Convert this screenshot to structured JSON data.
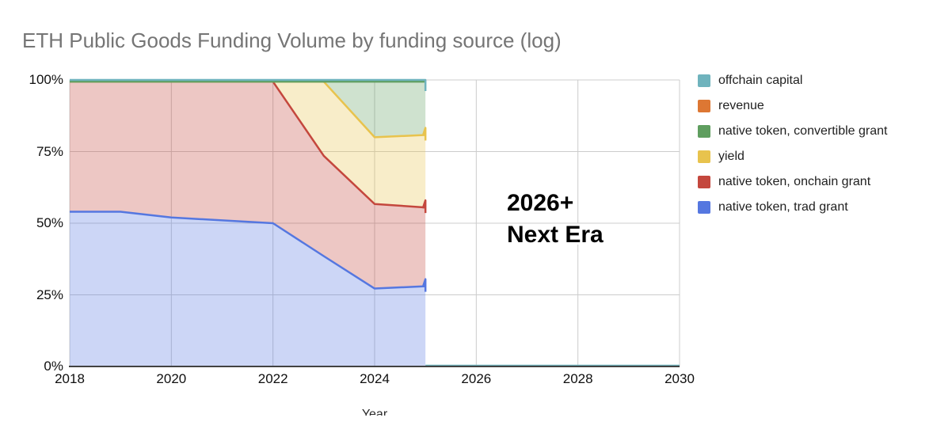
{
  "title": "ETH Public Goods Funding Volume by funding source (log)",
  "annotation": {
    "line1": "2026+",
    "line2": "Next Era"
  },
  "legend": [
    {
      "label": "offchain capital",
      "color": "#6fb3bd"
    },
    {
      "label": "revenue",
      "color": "#dd7733"
    },
    {
      "label": "native token, convertible grant",
      "color": "#5f9e5f"
    },
    {
      "label": "yield",
      "color": "#e8c34d"
    },
    {
      "label": "native token, onchain grant",
      "color": "#c4473d"
    },
    {
      "label": "native token, trad grant",
      "color": "#5577e0"
    }
  ],
  "colors": {
    "gridline": "#cccccc",
    "axis_line": "#424242",
    "title_text": "#757575",
    "tick_text": "#0f0f0f"
  },
  "chart_data": {
    "type": "area",
    "stacked_percent": true,
    "title": "ETH Public Goods Funding Volume by funding source (log)",
    "xlabel": "Year",
    "ylabel": "",
    "x": [
      2018,
      2019,
      2020,
      2021,
      2022,
      2023,
      2024,
      2025
    ],
    "x_axis_ticks": [
      2018,
      2020,
      2022,
      2024,
      2026,
      2028,
      2030
    ],
    "x_axis_range": [
      2018,
      2030
    ],
    "data_end_year": 2025,
    "y_axis_ticks": [
      {
        "label": "100%",
        "value": 100
      },
      {
        "label": "75%",
        "value": 75
      },
      {
        "label": "50%",
        "value": 50
      },
      {
        "label": "25%",
        "value": 25
      },
      {
        "label": "0%",
        "value": 0
      }
    ],
    "ylim": [
      0,
      100
    ],
    "grid": true,
    "legend_position": "right",
    "series_bottom_to_top": [
      {
        "name": "native token, trad grant",
        "color": "#5577e0",
        "values": [
          54,
          54,
          52,
          51,
          50,
          38.5,
          27.2,
          28
        ]
      },
      {
        "name": "native token, onchain grant",
        "color": "#c4473d",
        "values": [
          45.4,
          45.4,
          47.4,
          48.4,
          49.4,
          35.0,
          29.5,
          27.5
        ]
      },
      {
        "name": "yield",
        "color": "#e8c34d",
        "values": [
          0,
          0,
          0,
          0,
          0,
          25.9,
          23.3,
          25.3
        ]
      },
      {
        "name": "native token, convertible grant",
        "color": "#5f9e5f",
        "values": [
          0,
          0,
          0,
          0,
          0,
          0,
          19.4,
          18.6
        ]
      },
      {
        "name": "revenue",
        "color": "#dd7733",
        "values": [
          0,
          0,
          0,
          0,
          0,
          0,
          0,
          0
        ]
      },
      {
        "name": "offchain capital",
        "color": "#6fb3bd",
        "values": [
          0.6,
          0.6,
          0.6,
          0.6,
          0.6,
          0.6,
          0.6,
          0.6
        ]
      }
    ],
    "annotation_text": [
      "2026+",
      "Next Era"
    ],
    "fill_opacity": 0.3
  }
}
